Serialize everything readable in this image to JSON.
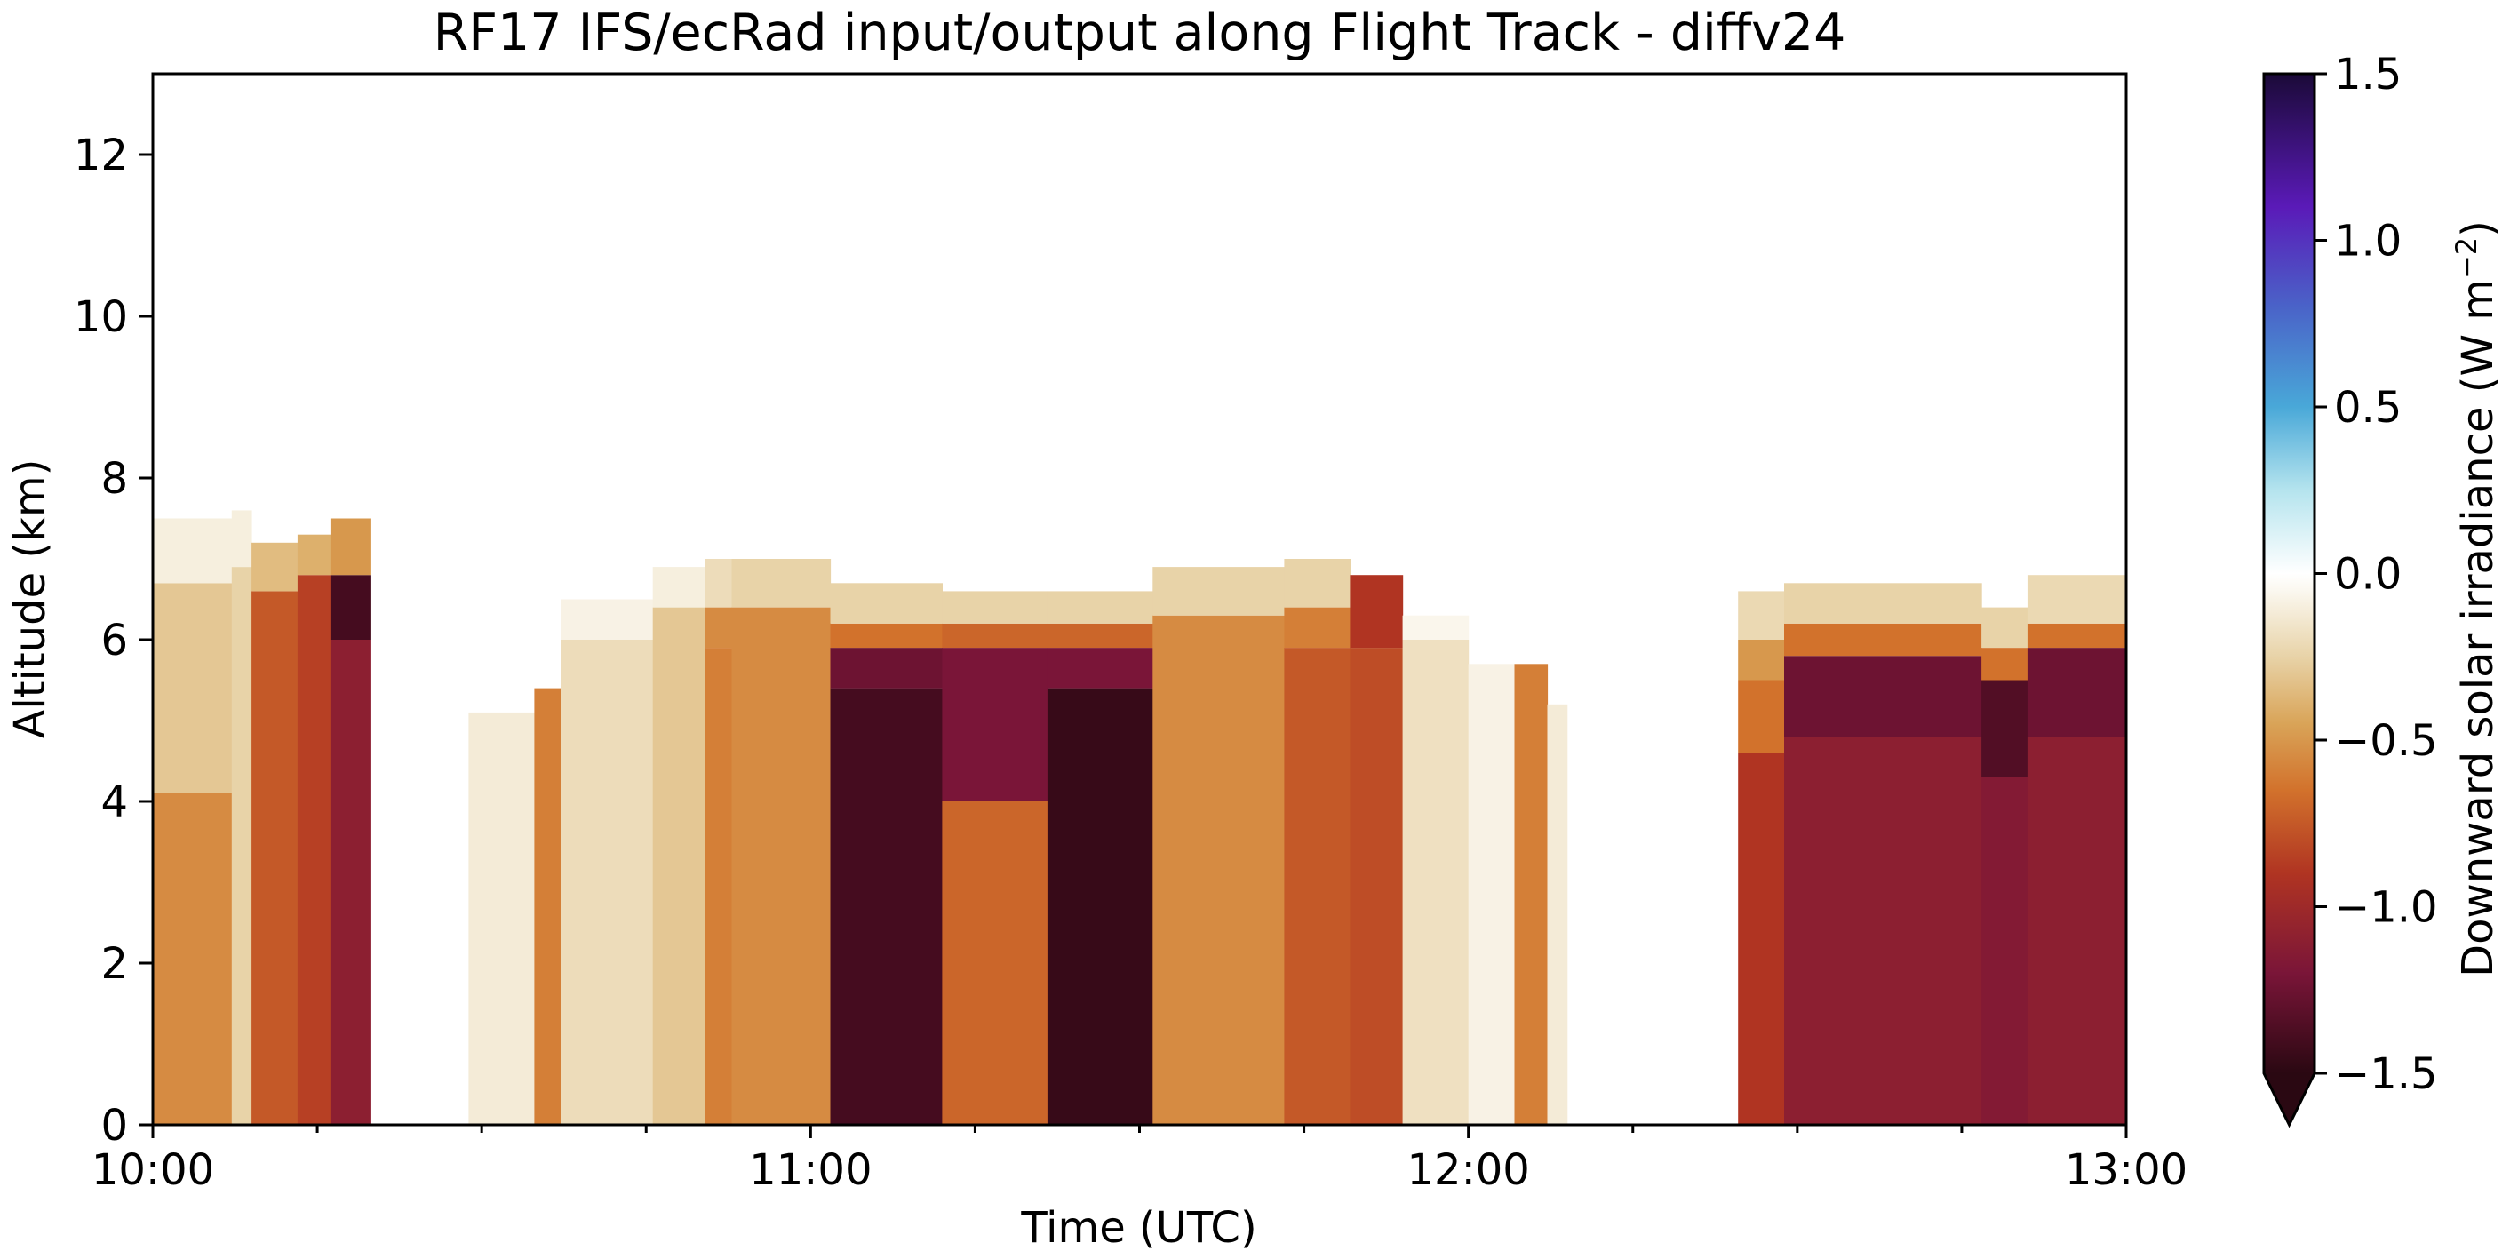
{
  "chart_data": {
    "type": "heatmap",
    "title": "RF17 IFS/ecRad input/output along Flight Track - diffv24",
    "xlabel": "Time (UTC)",
    "ylabel": "Altitude (km)",
    "x_ticks": [
      "10:00",
      "11:00",
      "12:00",
      "13:00"
    ],
    "y_ticks": [
      0,
      2,
      4,
      6,
      8,
      10,
      12
    ],
    "xlim_hours": [
      10.0,
      13.0
    ],
    "ylim_km": [
      0,
      13
    ],
    "grid": false,
    "colorbar": {
      "label": "Downward solar irradiance (W m",
      "label_exponent": "−2",
      "label_close": ")",
      "ticks": [
        "−1.5",
        "−1.0",
        "−0.5",
        "0.0",
        "0.5",
        "1.0",
        "1.5"
      ],
      "tick_values": [
        -1.5,
        -1.0,
        -0.5,
        0.0,
        0.5,
        1.0,
        1.5
      ],
      "range": [
        -1.5,
        1.5
      ],
      "extend": "min",
      "colormap": [
        {
          "v": -1.5,
          "c": "#2a0812"
        },
        {
          "v": -1.2,
          "c": "#7a1538"
        },
        {
          "v": -0.9,
          "c": "#b03422"
        },
        {
          "v": -0.65,
          "c": "#d2722c"
        },
        {
          "v": -0.45,
          "c": "#d9a458"
        },
        {
          "v": -0.25,
          "c": "#e8d3a8"
        },
        {
          "v": -0.05,
          "c": "#fbf8f0"
        },
        {
          "v": 0.0,
          "c": "#ffffff"
        },
        {
          "v": 0.25,
          "c": "#b5e4ee"
        },
        {
          "v": 0.5,
          "c": "#49a8d8"
        },
        {
          "v": 0.8,
          "c": "#4a63c8"
        },
        {
          "v": 1.1,
          "c": "#5a1ab8"
        },
        {
          "v": 1.5,
          "c": "#1b0a38"
        }
      ]
    },
    "segments": [
      {
        "t0": 10.0,
        "t1": 10.12,
        "levels": [
          {
            "z0": 0,
            "z1": 4.1,
            "v": -0.55
          },
          {
            "z0": 4.1,
            "z1": 6.7,
            "v": -0.3
          },
          {
            "z0": 6.7,
            "z1": 7.5,
            "v": -0.1
          }
        ]
      },
      {
        "t0": 10.12,
        "t1": 10.15,
        "levels": [
          {
            "z0": 0,
            "z1": 6.9,
            "v": -0.25
          },
          {
            "z0": 6.9,
            "z1": 7.6,
            "v": -0.1
          }
        ]
      },
      {
        "t0": 10.15,
        "t1": 10.22,
        "levels": [
          {
            "z0": 0,
            "z1": 6.6,
            "v": -0.75
          },
          {
            "z0": 6.6,
            "z1": 7.2,
            "v": -0.35
          }
        ]
      },
      {
        "t0": 10.22,
        "t1": 10.27,
        "levels": [
          {
            "z0": 0,
            "z1": 6.8,
            "v": -0.85
          },
          {
            "z0": 6.8,
            "z1": 7.3,
            "v": -0.4
          }
        ]
      },
      {
        "t0": 10.27,
        "t1": 10.33,
        "levels": [
          {
            "z0": 0,
            "z1": 6.0,
            "v": -1.1
          },
          {
            "z0": 6.0,
            "z1": 6.8,
            "v": -1.4
          },
          {
            "z0": 6.8,
            "z1": 7.5,
            "v": -0.5
          }
        ]
      },
      {
        "t0": 10.48,
        "t1": 10.58,
        "levels": [
          {
            "z0": 0,
            "z1": 5.1,
            "v": -0.12
          }
        ]
      },
      {
        "t0": 10.58,
        "t1": 10.62,
        "levels": [
          {
            "z0": 0,
            "z1": 5.4,
            "v": -0.6
          }
        ]
      },
      {
        "t0": 10.62,
        "t1": 10.76,
        "levels": [
          {
            "z0": 0,
            "z1": 6.0,
            "v": -0.2
          },
          {
            "z0": 6.0,
            "z1": 6.5,
            "v": -0.08
          }
        ]
      },
      {
        "t0": 10.76,
        "t1": 10.84,
        "levels": [
          {
            "z0": 0,
            "z1": 6.4,
            "v": -0.3
          },
          {
            "z0": 6.4,
            "z1": 6.9,
            "v": -0.1
          }
        ]
      },
      {
        "t0": 10.84,
        "t1": 10.88,
        "levels": [
          {
            "z0": 0,
            "z1": 5.9,
            "v": -0.6
          },
          {
            "z0": 5.9,
            "z1": 6.4,
            "v": -0.55
          },
          {
            "z0": 6.4,
            "z1": 7.0,
            "v": -0.2
          }
        ]
      },
      {
        "t0": 10.88,
        "t1": 11.03,
        "levels": [
          {
            "z0": 0,
            "z1": 6.4,
            "v": -0.55
          },
          {
            "z0": 6.4,
            "z1": 7.0,
            "v": -0.25
          }
        ]
      },
      {
        "t0": 11.03,
        "t1": 11.2,
        "levels": [
          {
            "z0": 0,
            "z1": 5.4,
            "v": -1.4
          },
          {
            "z0": 5.4,
            "z1": 5.9,
            "v": -1.25
          },
          {
            "z0": 5.9,
            "z1": 6.2,
            "v": -0.65
          },
          {
            "z0": 6.2,
            "z1": 6.7,
            "v": -0.25
          }
        ]
      },
      {
        "t0": 11.2,
        "t1": 11.36,
        "levels": [
          {
            "z0": 0,
            "z1": 4.0,
            "v": -0.7
          },
          {
            "z0": 4.0,
            "z1": 5.9,
            "v": -1.2
          },
          {
            "z0": 5.9,
            "z1": 6.2,
            "v": -0.7
          },
          {
            "z0": 6.2,
            "z1": 6.6,
            "v": -0.25
          }
        ]
      },
      {
        "t0": 11.36,
        "t1": 11.52,
        "levels": [
          {
            "z0": 0,
            "z1": 5.4,
            "v": -1.45
          },
          {
            "z0": 5.4,
            "z1": 5.9,
            "v": -1.2
          },
          {
            "z0": 5.9,
            "z1": 6.2,
            "v": -0.7
          },
          {
            "z0": 6.2,
            "z1": 6.6,
            "v": -0.25
          }
        ]
      },
      {
        "t0": 11.52,
        "t1": 11.72,
        "levels": [
          {
            "z0": 0,
            "z1": 6.3,
            "v": -0.55
          },
          {
            "z0": 6.3,
            "z1": 6.9,
            "v": -0.25
          }
        ]
      },
      {
        "t0": 11.72,
        "t1": 11.82,
        "levels": [
          {
            "z0": 0,
            "z1": 5.9,
            "v": -0.75
          },
          {
            "z0": 5.9,
            "z1": 6.4,
            "v": -0.6
          },
          {
            "z0": 6.4,
            "z1": 7.0,
            "v": -0.25
          }
        ]
      },
      {
        "t0": 11.82,
        "t1": 11.9,
        "levels": [
          {
            "z0": 0,
            "z1": 5.9,
            "v": -0.8
          },
          {
            "z0": 5.9,
            "z1": 6.8,
            "v": -0.9
          }
        ]
      },
      {
        "t0": 11.9,
        "t1": 12.0,
        "levels": [
          {
            "z0": 0,
            "z1": 6.0,
            "v": -0.18
          },
          {
            "z0": 6.0,
            "z1": 6.3,
            "v": -0.06
          }
        ]
      },
      {
        "t0": 12.0,
        "t1": 12.07,
        "levels": [
          {
            "z0": 0,
            "z1": 5.7,
            "v": -0.08
          }
        ]
      },
      {
        "t0": 12.07,
        "t1": 12.12,
        "levels": [
          {
            "z0": 0,
            "z1": 5.7,
            "v": -0.6
          }
        ]
      },
      {
        "t0": 12.12,
        "t1": 12.15,
        "levels": [
          {
            "z0": 0,
            "z1": 5.2,
            "v": -0.12
          }
        ]
      },
      {
        "t0": 12.41,
        "t1": 12.48,
        "levels": [
          {
            "z0": 0,
            "z1": 4.6,
            "v": -0.9
          },
          {
            "z0": 4.6,
            "z1": 5.5,
            "v": -0.65
          },
          {
            "z0": 5.5,
            "z1": 6.0,
            "v": -0.5
          },
          {
            "z0": 6.0,
            "z1": 6.6,
            "v": -0.22
          }
        ]
      },
      {
        "t0": 12.48,
        "t1": 12.78,
        "levels": [
          {
            "z0": 0,
            "z1": 4.8,
            "v": -1.1
          },
          {
            "z0": 4.8,
            "z1": 5.8,
            "v": -1.25
          },
          {
            "z0": 5.8,
            "z1": 6.2,
            "v": -0.65
          },
          {
            "z0": 6.2,
            "z1": 6.7,
            "v": -0.25
          }
        ]
      },
      {
        "t0": 12.78,
        "t1": 12.85,
        "levels": [
          {
            "z0": 0,
            "z1": 4.3,
            "v": -1.15
          },
          {
            "z0": 4.3,
            "z1": 5.5,
            "v": -1.35
          },
          {
            "z0": 5.5,
            "z1": 5.9,
            "v": -0.65
          },
          {
            "z0": 5.9,
            "z1": 6.4,
            "v": -0.25
          }
        ]
      },
      {
        "t0": 12.85,
        "t1": 13.0,
        "levels": [
          {
            "z0": 0,
            "z1": 4.8,
            "v": -1.1
          },
          {
            "z0": 4.8,
            "z1": 5.9,
            "v": -1.25
          },
          {
            "z0": 5.9,
            "z1": 6.2,
            "v": -0.65
          },
          {
            "z0": 6.2,
            "z1": 6.8,
            "v": -0.22
          }
        ]
      }
    ]
  }
}
